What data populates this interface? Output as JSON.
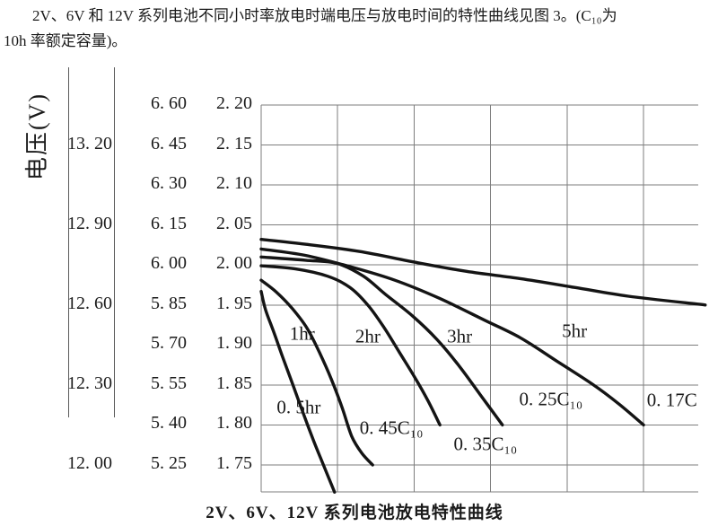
{
  "intro": {
    "line1": "2V、6V 和 12V 系列电池不同小时率放电时端电压与放电时间的特性曲线见图 3。(C₁₀为",
    "line2": "10h 率额定容量)。"
  },
  "caption": "2V、6V、12V 系列电池放电特性曲线",
  "colors": {
    "curve": "#141414",
    "grid": "#7d7d7d",
    "text": "#1a1a1a",
    "column_line": "#5a5a5a"
  },
  "chart_data": {
    "type": "line",
    "title": "2V、6V、12V 系列电池放电特性曲线",
    "xlabel": "",
    "ylabel": "电压(V)",
    "grid": true,
    "x_axis_tick_labels": [],
    "y_range_2v": [
      1.716,
      2.2
    ],
    "y_axis_rows": [
      {
        "v": 2.2,
        "v2": "2. 20",
        "v6": "6. 60",
        "v12": ""
      },
      {
        "v": 2.15,
        "v2": "2. 15",
        "v6": "6. 45",
        "v12": "13. 20"
      },
      {
        "v": 2.1,
        "v2": "2. 10",
        "v6": "6. 30",
        "v12": ""
      },
      {
        "v": 2.05,
        "v2": "2. 05",
        "v6": "6. 15",
        "v12": "12. 90"
      },
      {
        "v": 2.0,
        "v2": "2. 00",
        "v6": "6. 00",
        "v12": ""
      },
      {
        "v": 1.95,
        "v2": "1. 95",
        "v6": "5. 85",
        "v12": "12. 60"
      },
      {
        "v": 1.9,
        "v2": "1. 90",
        "v6": "5. 70",
        "v12": ""
      },
      {
        "v": 1.85,
        "v2": "1. 85",
        "v6": "5. 55",
        "v12": "12. 30"
      },
      {
        "v": 1.8,
        "v2": "1. 80",
        "v6": "5. 40",
        "v12": ""
      },
      {
        "v": 1.75,
        "v2": "1. 75",
        "v6": "5. 25",
        "v12": "12. 00"
      }
    ],
    "series": [
      {
        "name": "0.5hr",
        "points": [
          [
            0,
            1.967
          ],
          [
            0.01,
            1.944
          ],
          [
            0.029,
            1.916
          ],
          [
            0.049,
            1.885
          ],
          [
            0.072,
            1.851
          ],
          [
            0.096,
            1.815
          ],
          [
            0.121,
            1.779
          ],
          [
            0.144,
            1.748
          ],
          [
            0.168,
            1.716
          ]
        ]
      },
      {
        "name": "1hr",
        "points": [
          [
            0,
            1.981
          ],
          [
            0.035,
            1.966
          ],
          [
            0.072,
            1.945
          ],
          [
            0.105,
            1.921
          ],
          [
            0.133,
            1.891
          ],
          [
            0.16,
            1.858
          ],
          [
            0.185,
            1.822
          ],
          [
            0.207,
            1.786
          ],
          [
            0.23,
            1.765
          ],
          [
            0.255,
            1.75
          ]
        ]
      },
      {
        "name": "2hr",
        "points": [
          [
            0,
            1.999
          ],
          [
            0.08,
            1.995
          ],
          [
            0.152,
            1.986
          ],
          [
            0.203,
            1.972
          ],
          [
            0.244,
            1.95
          ],
          [
            0.281,
            1.922
          ],
          [
            0.316,
            1.891
          ],
          [
            0.351,
            1.86
          ],
          [
            0.382,
            1.83
          ],
          [
            0.409,
            1.8
          ]
        ]
      },
      {
        "name": "3hr",
        "points": [
          [
            0,
            2.01
          ],
          [
            0.101,
            2.006
          ],
          [
            0.173,
            2.002
          ],
          [
            0.234,
            1.986
          ],
          [
            0.285,
            1.963
          ],
          [
            0.347,
            1.936
          ],
          [
            0.402,
            1.907
          ],
          [
            0.454,
            1.873
          ],
          [
            0.501,
            1.838
          ],
          [
            0.552,
            1.8
          ]
        ]
      },
      {
        "name": "5hr",
        "points": [
          [
            0,
            2.02
          ],
          [
            0.101,
            2.012
          ],
          [
            0.203,
            1.998
          ],
          [
            0.306,
            1.981
          ],
          [
            0.409,
            1.958
          ],
          [
            0.511,
            1.931
          ],
          [
            0.593,
            1.909
          ],
          [
            0.676,
            1.88
          ],
          [
            0.758,
            1.851
          ],
          [
            0.819,
            1.826
          ],
          [
            0.875,
            1.8
          ]
        ]
      },
      {
        "name": "0.17C10",
        "points": [
          [
            0,
            2.032
          ],
          [
            0.101,
            2.026
          ],
          [
            0.224,
            2.017
          ],
          [
            0.347,
            2.004
          ],
          [
            0.47,
            1.992
          ],
          [
            0.593,
            1.983
          ],
          [
            0.717,
            1.972
          ],
          [
            0.84,
            1.961
          ],
          [
            1.016,
            1.95
          ]
        ]
      }
    ],
    "annotations": [
      {
        "text": "1hr",
        "x": 0.094,
        "v": 1.914
      },
      {
        "text": "2hr",
        "x": 0.244,
        "v": 1.91
      },
      {
        "text": "3hr",
        "x": 0.454,
        "v": 1.91
      },
      {
        "text": "5hr",
        "x": 0.717,
        "v": 1.917
      },
      {
        "text": "0. 5hr",
        "x": 0.086,
        "v": 1.822
      },
      {
        "text": "0. 45C₁₀",
        "x": 0.298,
        "v": 1.796
      },
      {
        "text": "0. 35C₁₀",
        "x": 0.513,
        "v": 1.776
      },
      {
        "text": "0. 25C₁₀",
        "x": 0.663,
        "v": 1.832
      },
      {
        "text": "0. 17C",
        "x": 0.94,
        "v": 1.831
      }
    ]
  }
}
